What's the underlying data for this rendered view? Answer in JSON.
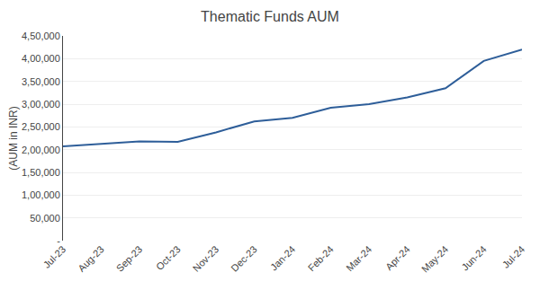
{
  "chart_data": {
    "type": "line",
    "title": "Thematic Funds AUM",
    "ylabel": "(AUM in INR)",
    "categories": [
      "Jul-23",
      "Aug-23",
      "Sep-23",
      "Oct-23",
      "Nov-23",
      "Dec-23",
      "Jan-24",
      "Feb-24",
      "Mar-24",
      "Apr-24",
      "May-24",
      "Jun-24",
      "Jul-24"
    ],
    "values": [
      207000,
      212000,
      218000,
      217000,
      238000,
      262000,
      270000,
      292000,
      300000,
      315000,
      335000,
      395000,
      420000
    ],
    "color": "#2E5E99",
    "ylim": [
      0,
      450000
    ],
    "yticks": [
      {
        "value": 0,
        "label": "-"
      },
      {
        "value": 50000,
        "label": "50,000"
      },
      {
        "value": 100000,
        "label": "1,00,000"
      },
      {
        "value": 150000,
        "label": "1,50,000"
      },
      {
        "value": 200000,
        "label": "2,00,000"
      },
      {
        "value": 250000,
        "label": "2,50,000"
      },
      {
        "value": 300000,
        "label": "3,00,000"
      },
      {
        "value": 350000,
        "label": "3,50,000"
      },
      {
        "value": 400000,
        "label": "4,00,000"
      },
      {
        "value": 450000,
        "label": "4,50,000"
      }
    ],
    "grid": true
  }
}
